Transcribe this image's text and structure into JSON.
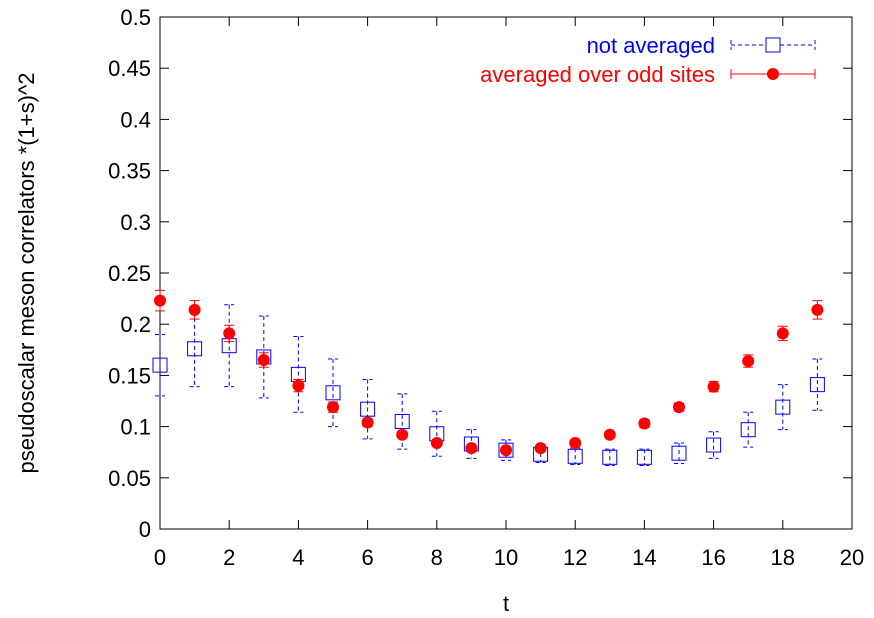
{
  "chart_data": {
    "type": "scatter",
    "title": "",
    "xlabel": "t",
    "ylabel": "pseudoscalar meson correlators *(1+s)^2",
    "xlim": [
      0,
      20
    ],
    "ylim": [
      0,
      0.5
    ],
    "x_ticks": [
      0,
      2,
      4,
      6,
      8,
      10,
      12,
      14,
      16,
      18,
      20
    ],
    "y_ticks": [
      0,
      0.05,
      0.1,
      0.15,
      0.2,
      0.25,
      0.3,
      0.35,
      0.4,
      0.45,
      0.5
    ],
    "x_tick_labels": [
      "0",
      "2",
      "4",
      "6",
      "8",
      "10",
      "12",
      "14",
      "16",
      "18",
      "20"
    ],
    "y_tick_labels": [
      "0",
      "0.05",
      "0.1",
      "0.15",
      "0.2",
      "0.25",
      "0.3",
      "0.35",
      "0.4",
      "0.45",
      "0.5"
    ],
    "grid": false,
    "legend_position": "top-right",
    "series": [
      {
        "name": "not averaged",
        "color": "#0000ff",
        "marker": "open-square",
        "line_style": "dashed",
        "error_bars": true,
        "x": [
          0,
          1,
          2,
          3,
          4,
          5,
          6,
          7,
          8,
          9,
          10,
          11,
          12,
          13,
          14,
          15,
          16,
          17,
          18,
          19
        ],
        "y": [
          0.16,
          0.176,
          0.179,
          0.168,
          0.151,
          0.133,
          0.117,
          0.105,
          0.093,
          0.083,
          0.077,
          0.073,
          0.071,
          0.07,
          0.07,
          0.074,
          0.082,
          0.097,
          0.119,
          0.141
        ],
        "y_err": [
          0.03,
          0.037,
          0.04,
          0.04,
          0.037,
          0.033,
          0.029,
          0.027,
          0.022,
          0.014,
          0.01,
          0.008,
          0.008,
          0.008,
          0.008,
          0.01,
          0.013,
          0.017,
          0.022,
          0.025
        ]
      },
      {
        "name": "averaged over odd sites",
        "color": "#ff0000",
        "marker": "filled-circle",
        "line_style": "solid",
        "error_bars": true,
        "x": [
          0,
          1,
          2,
          3,
          4,
          5,
          6,
          7,
          8,
          9,
          10,
          11,
          12,
          13,
          14,
          15,
          16,
          17,
          18,
          19
        ],
        "y": [
          0.223,
          0.214,
          0.191,
          0.165,
          0.14,
          0.119,
          0.104,
          0.092,
          0.084,
          0.079,
          0.077,
          0.079,
          0.084,
          0.092,
          0.103,
          0.119,
          0.139,
          0.164,
          0.191,
          0.214
        ],
        "y_err": [
          0.01,
          0.009,
          0.008,
          0.007,
          0.006,
          0.005,
          0.004,
          0.003,
          0.003,
          0.003,
          0.003,
          0.003,
          0.003,
          0.003,
          0.004,
          0.004,
          0.005,
          0.006,
          0.007,
          0.009
        ]
      }
    ]
  }
}
